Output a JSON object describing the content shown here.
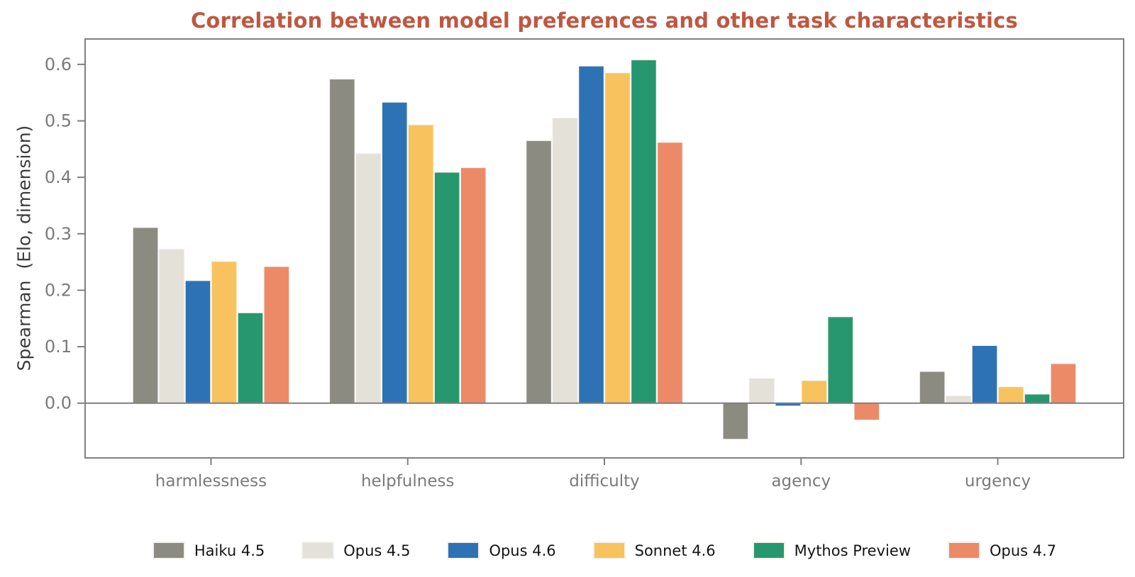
{
  "title": "Correlation between model preferences and other task characteristics",
  "colors": {
    "title": "#bf5740",
    "spine": "#7f7f7f",
    "tick_label": "#7a7a7a",
    "axis_label": "#3d3d3d",
    "bar_edge": "#f5f4ee"
  },
  "chart_data": {
    "type": "bar",
    "title": "Correlation between model preferences and other task characteristics",
    "xlabel": "",
    "ylabel": "Spearman  (Elo, dimension)",
    "categories": [
      "harmlessness",
      "helpfulness",
      "difficulty",
      "agency",
      "urgency"
    ],
    "series": [
      {
        "name": "Haiku 4.5",
        "color": "#8b8b82",
        "values": [
          0.311,
          0.574,
          0.465,
          -0.064,
          0.056
        ]
      },
      {
        "name": "Opus 4.5",
        "color": "#e3e1d8",
        "values": [
          0.273,
          0.442,
          0.505,
          0.044,
          0.013
        ]
      },
      {
        "name": "Opus 4.6",
        "color": "#2d72b5",
        "values": [
          0.217,
          0.533,
          0.597,
          -0.005,
          0.102
        ]
      },
      {
        "name": "Sonnet 4.6",
        "color": "#f8c35e",
        "values": [
          0.251,
          0.493,
          0.585,
          0.04,
          0.029
        ]
      },
      {
        "name": "Mythos Preview",
        "color": "#27976f",
        "values": [
          0.16,
          0.409,
          0.608,
          0.153,
          0.016
        ]
      },
      {
        "name": "Opus 4.7",
        "color": "#ec8a68",
        "values": [
          0.242,
          0.417,
          0.462,
          -0.03,
          0.07
        ]
      }
    ],
    "yticks": [
      0.0,
      0.1,
      0.2,
      0.3,
      0.4,
      0.5,
      0.6
    ],
    "ylim": [
      -0.097,
      0.645
    ],
    "grid": false,
    "legend_position": "bottom"
  }
}
